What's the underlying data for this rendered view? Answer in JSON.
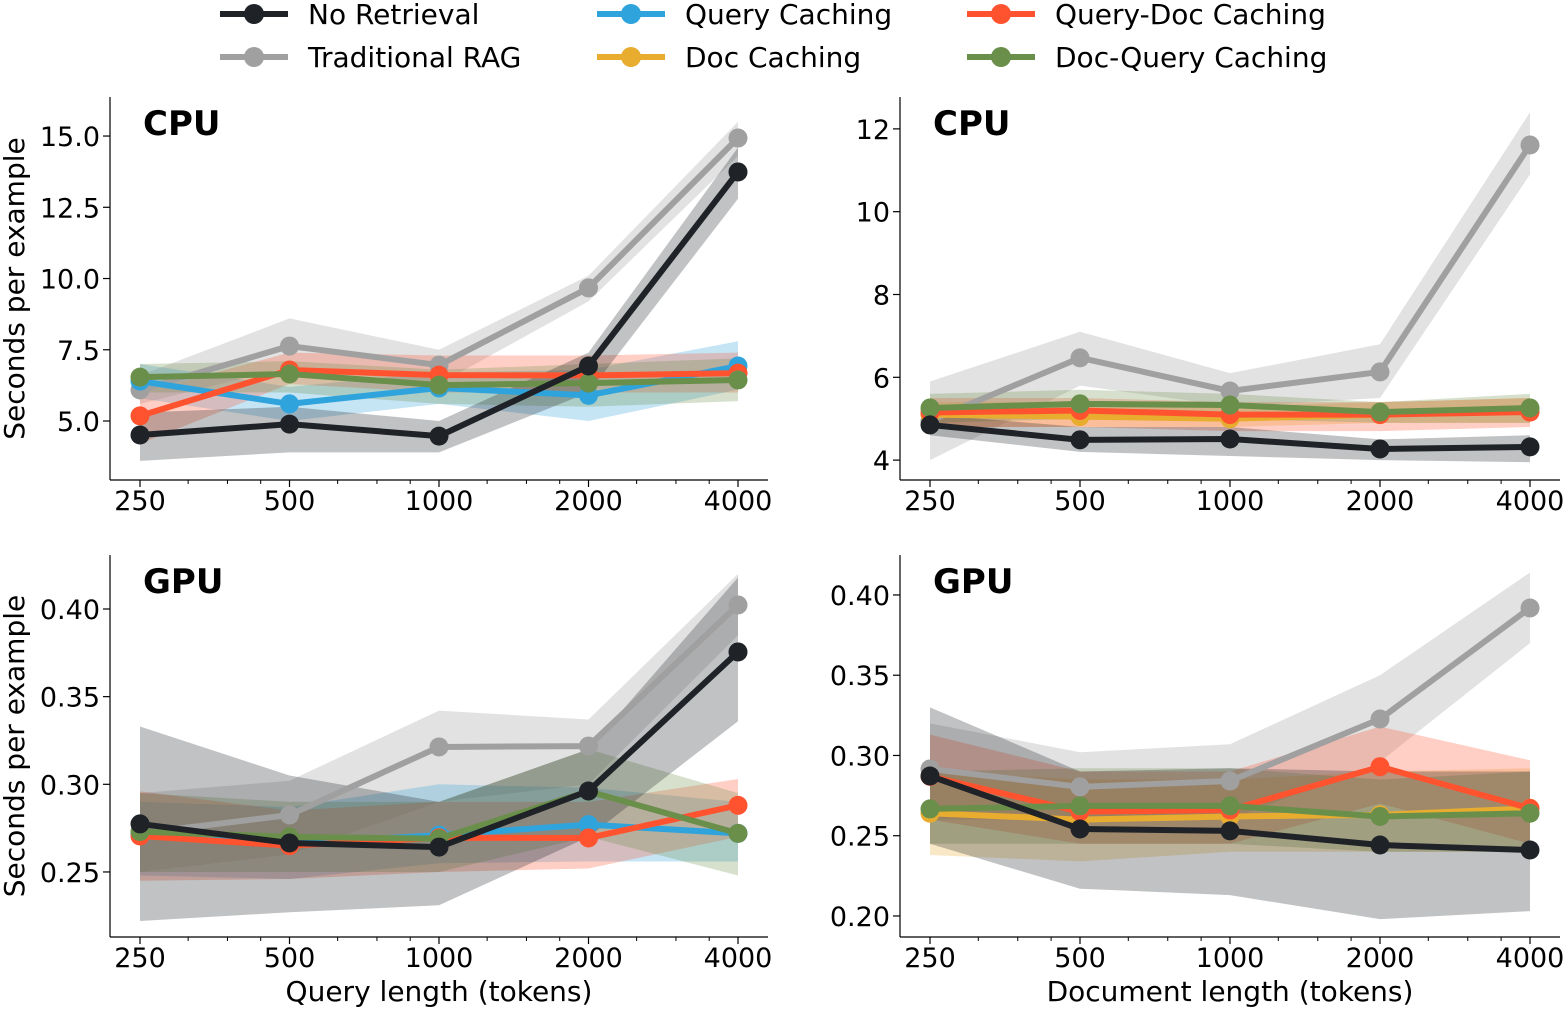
{
  "legend": {
    "placement": "top-center",
    "entries": [
      {
        "name": "No Retrieval",
        "color": "#1f2328"
      },
      {
        "name": "Traditional RAG",
        "color": "#a0a0a0"
      },
      {
        "name": "Query Caching",
        "color": "#2ea3dc"
      },
      {
        "name": "Doc Caching",
        "color": "#e8ac2f"
      },
      {
        "name": "Query-Doc Caching",
        "color": "#ff5330"
      },
      {
        "name": "Doc-Query Caching",
        "color": "#6a8f4a"
      }
    ]
  },
  "chart_data": [
    {
      "type": "line",
      "title": "CPU",
      "xlabel": "",
      "ylabel": "Seconds per example",
      "x": [
        250,
        500,
        1000,
        2000,
        4000
      ],
      "xscale": "log2",
      "xticks": [
        "250",
        "500",
        "1000",
        "2000",
        "4000"
      ],
      "ylim": [
        2.93,
        16.37
      ],
      "yticks": [
        5.0,
        7.5,
        10.0,
        12.5,
        15.0
      ],
      "ytick_labels": [
        "5.0",
        "7.5",
        "10.0",
        "12.5",
        "15.0"
      ],
      "grid": false,
      "shaded_bands": true,
      "series": [
        {
          "name": "Traditional RAG",
          "values": [
            6.09,
            7.63,
            6.96,
            9.67,
            14.93
          ],
          "lower": [
            5.6,
            6.9,
            6.3,
            9.2,
            14.3
          ],
          "upper": [
            6.6,
            8.6,
            7.5,
            10.1,
            15.5
          ]
        },
        {
          "name": "Query Caching",
          "values": [
            6.4,
            5.6,
            6.16,
            5.9,
            6.93
          ],
          "lower": [
            5.8,
            5.0,
            5.6,
            5.0,
            6.1
          ],
          "upper": [
            7.0,
            6.2,
            6.7,
            6.8,
            7.8
          ]
        },
        {
          "name": "Query-Doc Caching",
          "values": [
            5.18,
            6.79,
            6.61,
            6.6,
            6.68
          ],
          "lower": [
            4.2,
            6.3,
            6.0,
            6.0,
            6.0
          ],
          "upper": [
            6.0,
            7.4,
            7.3,
            7.3,
            7.4
          ]
        },
        {
          "name": "Doc-Query Caching",
          "values": [
            6.54,
            6.65,
            6.26,
            6.33,
            6.44
          ],
          "lower": [
            6.0,
            6.0,
            5.6,
            5.5,
            5.7
          ],
          "upper": [
            7.0,
            7.1,
            6.8,
            7.0,
            7.2
          ]
        },
        {
          "name": "No Retrieval",
          "values": [
            4.51,
            4.89,
            4.47,
            6.93,
            13.74
          ],
          "lower": [
            3.6,
            3.9,
            3.9,
            6.0,
            12.8
          ],
          "upper": [
            5.3,
            5.5,
            5.0,
            7.4,
            14.6
          ]
        }
      ]
    },
    {
      "type": "line",
      "title": "CPU",
      "xlabel": "",
      "ylabel": "",
      "x": [
        250,
        500,
        1000,
        2000,
        4000
      ],
      "xscale": "log2",
      "xticks": [
        "250",
        "500",
        "1000",
        "2000",
        "4000"
      ],
      "ylim": [
        3.52,
        12.77
      ],
      "yticks": [
        4,
        6,
        8,
        10,
        12
      ],
      "ytick_labels": [
        "4",
        "6",
        "8",
        "10",
        "12"
      ],
      "grid": false,
      "shaded_bands": true,
      "series": [
        {
          "name": "Traditional RAG",
          "values": [
            4.95,
            6.47,
            5.67,
            6.13,
            11.61
          ],
          "lower": [
            4.0,
            5.8,
            5.3,
            5.5,
            10.9
          ],
          "upper": [
            5.9,
            7.1,
            6.1,
            6.8,
            12.4
          ]
        },
        {
          "name": "Doc Caching",
          "values": [
            5.1,
            5.05,
            5.0,
            5.1,
            5.2
          ],
          "lower": [
            4.8,
            4.8,
            4.8,
            4.9,
            4.9
          ],
          "upper": [
            5.4,
            5.4,
            5.3,
            5.4,
            5.5
          ]
        },
        {
          "name": "Query-Doc Caching",
          "values": [
            5.15,
            5.2,
            5.1,
            5.1,
            5.16
          ],
          "lower": [
            4.8,
            4.8,
            4.7,
            4.7,
            4.8
          ],
          "upper": [
            5.5,
            5.5,
            5.4,
            5.4,
            5.5
          ]
        },
        {
          "name": "Doc-Query Caching",
          "values": [
            5.26,
            5.36,
            5.33,
            5.16,
            5.26
          ],
          "lower": [
            4.9,
            5.0,
            5.0,
            4.9,
            4.9
          ],
          "upper": [
            5.6,
            5.7,
            5.6,
            5.4,
            5.6
          ]
        },
        {
          "name": "No Retrieval",
          "values": [
            4.85,
            4.49,
            4.51,
            4.27,
            4.32
          ],
          "lower": [
            4.6,
            4.2,
            4.1,
            4.0,
            3.95
          ],
          "upper": [
            5.1,
            4.8,
            4.8,
            4.5,
            4.6
          ]
        }
      ]
    },
    {
      "type": "line",
      "title": "GPU",
      "xlabel": "Query length (tokens)",
      "ylabel": "Seconds per example",
      "x": [
        250,
        500,
        1000,
        2000,
        4000
      ],
      "xscale": "log2",
      "xticks": [
        "250",
        "500",
        "1000",
        "2000",
        "4000"
      ],
      "ylim": [
        0.2129,
        0.4308
      ],
      "yticks": [
        0.25,
        0.3,
        0.35,
        0.4
      ],
      "ytick_labels": [
        "0.25",
        "0.30",
        "0.35",
        "0.40"
      ],
      "grid": false,
      "shaded_bands": true,
      "series": [
        {
          "name": "Traditional RAG",
          "values": [
            0.272,
            0.2825,
            0.3213,
            0.3218,
            0.4023
          ],
          "lower": [
            0.25,
            0.26,
            0.29,
            0.3,
            0.385
          ],
          "upper": [
            0.295,
            0.302,
            0.342,
            0.337,
            0.42
          ]
        },
        {
          "name": "Query Caching",
          "values": [
            0.271,
            0.266,
            0.271,
            0.277,
            0.272
          ],
          "lower": [
            0.248,
            0.246,
            0.255,
            0.256,
            0.256
          ],
          "upper": [
            0.29,
            0.287,
            0.3,
            0.298,
            0.29
          ]
        },
        {
          "name": "Query-Doc Caching",
          "values": [
            0.2705,
            0.265,
            0.2695,
            0.2694,
            0.288
          ],
          "lower": [
            0.245,
            0.246,
            0.25,
            0.252,
            0.27
          ],
          "upper": [
            0.296,
            0.285,
            0.29,
            0.29,
            0.303
          ]
        },
        {
          "name": "Doc-Query Caching",
          "values": [
            0.273,
            0.27,
            0.269,
            0.296,
            0.272
          ],
          "lower": [
            0.25,
            0.25,
            0.25,
            0.27,
            0.248
          ],
          "upper": [
            0.295,
            0.29,
            0.29,
            0.32,
            0.295
          ]
        },
        {
          "name": "No Retrieval",
          "values": [
            0.2774,
            0.2665,
            0.2642,
            0.2962,
            0.3755
          ],
          "lower": [
            0.222,
            0.227,
            0.231,
            0.27,
            0.336
          ],
          "upper": [
            0.333,
            0.305,
            0.29,
            0.32,
            0.418
          ]
        }
      ]
    },
    {
      "type": "line",
      "title": "GPU",
      "xlabel": "Document length (tokens)",
      "ylabel": "",
      "x": [
        250,
        500,
        1000,
        2000,
        4000
      ],
      "xscale": "log2",
      "xticks": [
        "250",
        "500",
        "1000",
        "2000",
        "4000"
      ],
      "ylim": [
        0.1869,
        0.4249
      ],
      "yticks": [
        0.2,
        0.25,
        0.3,
        0.35,
        0.4
      ],
      "ytick_labels": [
        "0.20",
        "0.25",
        "0.30",
        "0.35",
        "0.40"
      ],
      "grid": false,
      "shaded_bands": true,
      "series": [
        {
          "name": "Traditional RAG",
          "values": [
            0.2916,
            0.2804,
            0.2841,
            0.3227,
            0.3919
          ],
          "lower": [
            0.26,
            0.26,
            0.26,
            0.296,
            0.37
          ],
          "upper": [
            0.32,
            0.302,
            0.307,
            0.35,
            0.414
          ]
        },
        {
          "name": "Doc Caching",
          "values": [
            0.264,
            0.26,
            0.262,
            0.263,
            0.267
          ],
          "lower": [
            0.238,
            0.234,
            0.24,
            0.24,
            0.24
          ],
          "upper": [
            0.29,
            0.285,
            0.285,
            0.29,
            0.292
          ]
        },
        {
          "name": "Query-Doc Caching",
          "values": [
            0.287,
            0.265,
            0.266,
            0.293,
            0.267
          ],
          "lower": [
            0.26,
            0.245,
            0.245,
            0.27,
            0.245
          ],
          "upper": [
            0.313,
            0.29,
            0.29,
            0.318,
            0.297
          ]
        },
        {
          "name": "Doc-Query Caching",
          "values": [
            0.2667,
            0.2686,
            0.2686,
            0.262,
            0.264
          ],
          "lower": [
            0.245,
            0.245,
            0.245,
            0.24,
            0.24
          ],
          "upper": [
            0.29,
            0.292,
            0.292,
            0.285,
            0.29
          ]
        },
        {
          "name": "No Retrieval",
          "values": [
            0.2872,
            0.2542,
            0.253,
            0.2442,
            0.2411
          ],
          "lower": [
            0.245,
            0.217,
            0.213,
            0.198,
            0.203
          ],
          "upper": [
            0.33,
            0.29,
            0.292,
            0.29,
            0.29
          ]
        }
      ]
    }
  ]
}
